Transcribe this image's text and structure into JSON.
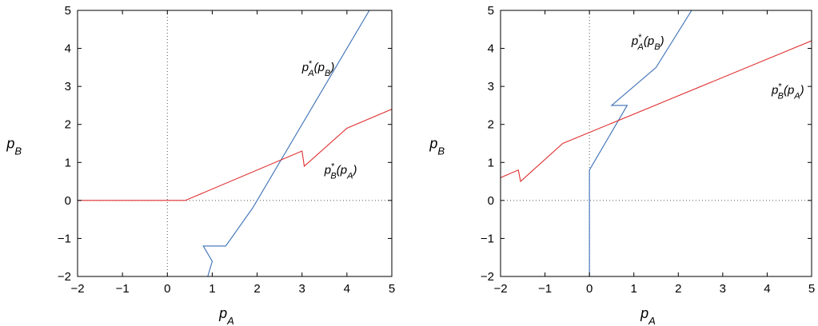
{
  "chart_data": [
    {
      "type": "line",
      "xlabel": "p_A",
      "ylabel": "p_B",
      "xlim": [
        -2,
        5
      ],
      "ylim": [
        -2,
        5
      ],
      "xticks": [
        "-2",
        "-1",
        "0",
        "1",
        "2",
        "3",
        "4",
        "5"
      ],
      "yticks": [
        "-2",
        "-1",
        "0",
        "1",
        "2",
        "3",
        "4",
        "5"
      ],
      "reference_lines": {
        "x": 0,
        "y": 0,
        "style": "dotted"
      },
      "series": [
        {
          "name": "p*A(pB)",
          "color": "#3a6fb5",
          "points": [
            [
              0.9,
              -2.0
            ],
            [
              1.0,
              -1.6
            ],
            [
              0.8,
              -1.2
            ],
            [
              1.3,
              -1.2
            ],
            [
              1.9,
              -0.2
            ],
            [
              4.5,
              5.0
            ]
          ]
        },
        {
          "name": "p*B(pA)",
          "color": "#e03030",
          "points": [
            [
              -2.0,
              0.0
            ],
            [
              0.4,
              0.0
            ],
            [
              3.0,
              1.3
            ],
            [
              3.05,
              0.9
            ],
            [
              4.0,
              1.9
            ],
            [
              5.0,
              2.4
            ]
          ]
        }
      ],
      "annotations": [
        {
          "text_main": "p",
          "text_sup": "*",
          "text_sub": "A",
          "text_arg": "(p",
          "text_arg_sub": "B",
          "text_close": ")",
          "x": 3.0,
          "y": 3.4
        },
        {
          "text_main": "p",
          "text_sup": "*",
          "text_sub": "B",
          "text_arg": "(p",
          "text_arg_sub": "A",
          "text_close": ")",
          "x": 3.5,
          "y": 0.7
        }
      ]
    },
    {
      "type": "line",
      "xlabel": "p_A",
      "ylabel": "p_B",
      "xlim": [
        -2,
        5
      ],
      "ylim": [
        -2,
        5
      ],
      "xticks": [
        "-2",
        "-1",
        "0",
        "1",
        "2",
        "3",
        "4",
        "5"
      ],
      "yticks": [
        "-2",
        "-1",
        "0",
        "1",
        "2",
        "3",
        "4",
        "5"
      ],
      "reference_lines": {
        "x": 0,
        "y": 0,
        "style": "dotted"
      },
      "series": [
        {
          "name": "p*A(pB)",
          "color": "#3a6fb5",
          "points": [
            [
              0.0,
              -2.0
            ],
            [
              0.0,
              0.8
            ],
            [
              0.85,
              2.5
            ],
            [
              0.5,
              2.5
            ],
            [
              1.5,
              3.5
            ],
            [
              2.3,
              5.0
            ]
          ]
        },
        {
          "name": "p*B(pA)",
          "color": "#e03030",
          "points": [
            [
              -2.0,
              0.6
            ],
            [
              -1.6,
              0.8
            ],
            [
              -1.55,
              0.5
            ],
            [
              -0.6,
              1.5
            ],
            [
              5.0,
              4.2
            ]
          ]
        }
      ],
      "annotations": [
        {
          "text_main": "p",
          "text_sup": "*",
          "text_sub": "A",
          "text_arg": "(p",
          "text_arg_sub": "B",
          "text_close": ")",
          "x": 0.95,
          "y": 4.1
        },
        {
          "text_main": "p",
          "text_sup": "*",
          "text_sub": "B",
          "text_arg": "(p",
          "text_arg_sub": "A",
          "text_close": ")",
          "x": 4.1,
          "y": 2.8
        }
      ]
    }
  ]
}
